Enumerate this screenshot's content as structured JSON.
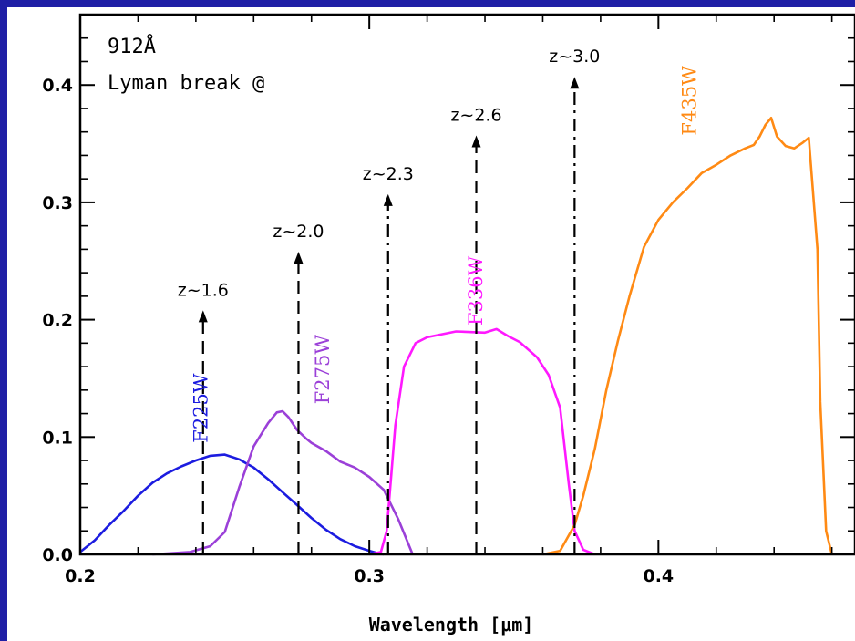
{
  "chart_data": {
    "type": "line",
    "xlabel": "Wavelength [μm]",
    "ylabel": "",
    "xlim": [
      0.2,
      0.468
    ],
    "ylim": [
      0.0,
      0.46
    ],
    "x_ticks": [
      "0.2",
      "0.3",
      "0.4"
    ],
    "y_ticks": [
      "0.0",
      "0.1",
      "0.2",
      "0.3",
      "0.4"
    ],
    "grid": false,
    "annotation_lines": [
      "912Å",
      "Lyman break @"
    ],
    "series": [
      {
        "name": "F225W",
        "color": "#1c1ce0",
        "label_at": [
          0.244,
          0.095
        ],
        "x": [
          0.2,
          0.205,
          0.21,
          0.215,
          0.22,
          0.225,
          0.23,
          0.235,
          0.24,
          0.245,
          0.25,
          0.255,
          0.26,
          0.265,
          0.27,
          0.275,
          0.28,
          0.285,
          0.29,
          0.295,
          0.3,
          0.303,
          0.305
        ],
        "values": [
          0.002,
          0.012,
          0.025,
          0.037,
          0.05,
          0.061,
          0.069,
          0.075,
          0.08,
          0.084,
          0.085,
          0.081,
          0.074,
          0.064,
          0.053,
          0.042,
          0.031,
          0.021,
          0.013,
          0.007,
          0.003,
          0.001,
          0.0
        ]
      },
      {
        "name": "F275W",
        "color": "#9b40d8",
        "label_at": [
          0.286,
          0.128
        ],
        "x": [
          0.225,
          0.238,
          0.245,
          0.25,
          0.255,
          0.26,
          0.265,
          0.268,
          0.27,
          0.272,
          0.275,
          0.278,
          0.28,
          0.285,
          0.29,
          0.295,
          0.3,
          0.305,
          0.31,
          0.315
        ],
        "values": [
          0.0,
          0.002,
          0.007,
          0.019,
          0.057,
          0.092,
          0.112,
          0.121,
          0.122,
          0.117,
          0.106,
          0.099,
          0.095,
          0.088,
          0.079,
          0.074,
          0.066,
          0.055,
          0.03,
          0.0
        ]
      },
      {
        "name": "F336W",
        "color": "#ff19ff",
        "label_at": [
          0.339,
          0.195
        ],
        "x": [
          0.3,
          0.304,
          0.306,
          0.307,
          0.309,
          0.312,
          0.316,
          0.32,
          0.33,
          0.34,
          0.344,
          0.348,
          0.352,
          0.358,
          0.362,
          0.366,
          0.369,
          0.371,
          0.374,
          0.378
        ],
        "values": [
          0.0,
          0.002,
          0.02,
          0.05,
          0.11,
          0.16,
          0.18,
          0.185,
          0.19,
          0.189,
          0.192,
          0.186,
          0.181,
          0.168,
          0.153,
          0.125,
          0.06,
          0.02,
          0.004,
          0.0
        ]
      },
      {
        "name": "F435W",
        "color": "#ff8a14",
        "label_at": [
          0.413,
          0.357
        ],
        "x": [
          0.36,
          0.366,
          0.371,
          0.374,
          0.378,
          0.382,
          0.386,
          0.39,
          0.395,
          0.4,
          0.405,
          0.41,
          0.415,
          0.42,
          0.425,
          0.43,
          0.433,
          0.435,
          0.437,
          0.439,
          0.441,
          0.444,
          0.447,
          0.45,
          0.452,
          0.455,
          0.456,
          0.458,
          0.46
        ],
        "values": [
          0.0,
          0.003,
          0.025,
          0.05,
          0.09,
          0.14,
          0.182,
          0.22,
          0.262,
          0.285,
          0.3,
          0.312,
          0.325,
          0.332,
          0.34,
          0.346,
          0.349,
          0.356,
          0.366,
          0.372,
          0.356,
          0.348,
          0.346,
          0.351,
          0.355,
          0.26,
          0.13,
          0.02,
          0.0
        ]
      }
    ],
    "markers": [
      {
        "label": "z~1.6",
        "x": 0.2425,
        "y_top": 0.208,
        "style": "dashed"
      },
      {
        "label": "z~2.0",
        "x": 0.2755,
        "y_top": 0.258,
        "style": "dashed"
      },
      {
        "label": "z~2.3",
        "x": 0.3065,
        "y_top": 0.307,
        "style": "dashdot"
      },
      {
        "label": "z~2.6",
        "x": 0.337,
        "y_top": 0.357,
        "style": "dashed"
      },
      {
        "label": "z~3.0",
        "x": 0.371,
        "y_top": 0.407,
        "style": "dashdot"
      }
    ]
  }
}
